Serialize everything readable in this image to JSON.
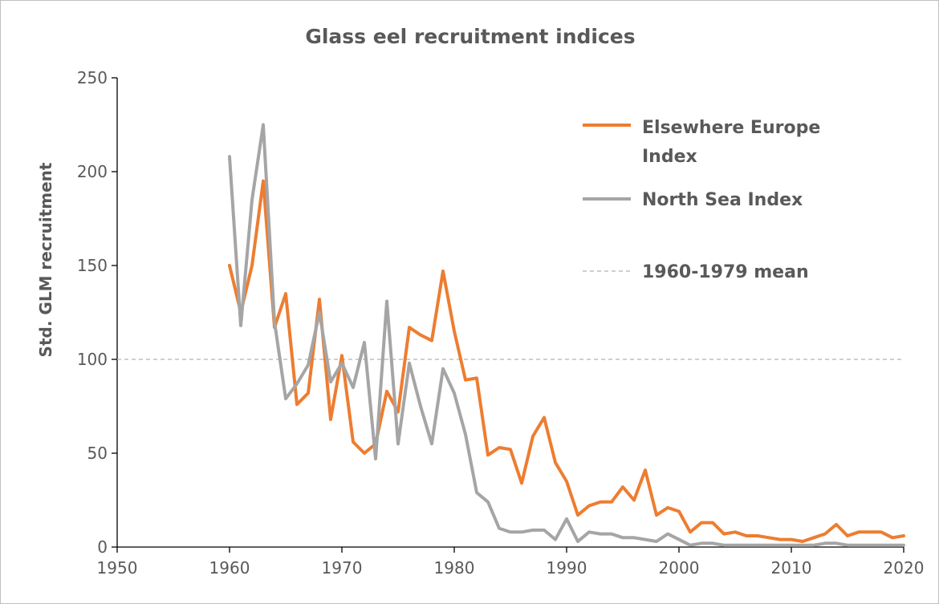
{
  "chart_data": {
    "type": "line",
    "title": "Glass eel recruitment indices",
    "xlabel": "",
    "ylabel": "Std. GLM recruitment",
    "xlim": [
      1950,
      2020
    ],
    "ylim": [
      0,
      250
    ],
    "x_ticks": [
      "1950",
      "1960",
      "1970",
      "1980",
      "1990",
      "2000",
      "2010",
      "2020"
    ],
    "y_ticks": [
      "0",
      "50",
      "100",
      "150",
      "200",
      "250"
    ],
    "grid": false,
    "legend_position": "top-right",
    "reference_line": {
      "name": "1960-1979 mean",
      "value": 100,
      "color": "#bfbfbf",
      "style": "dashed"
    },
    "series": [
      {
        "name_lines": [
          "Elsewhere Europe",
          "Index"
        ],
        "color": "#ed7d31",
        "x": [
          1960,
          1961,
          1962,
          1963,
          1964,
          1965,
          1966,
          1967,
          1968,
          1969,
          1970,
          1971,
          1972,
          1973,
          1974,
          1975,
          1976,
          1977,
          1978,
          1979,
          1980,
          1981,
          1982,
          1983,
          1984,
          1985,
          1986,
          1987,
          1988,
          1989,
          1990,
          1991,
          1992,
          1993,
          1994,
          1995,
          1996,
          1997,
          1998,
          1999,
          2000,
          2001,
          2002,
          2003,
          2004,
          2005,
          2006,
          2007,
          2008,
          2009,
          2010,
          2011,
          2012,
          2013,
          2014,
          2015,
          2016,
          2017,
          2018,
          2019,
          2020
        ],
        "values": [
          150,
          125,
          150,
          195,
          117,
          135,
          76,
          82,
          132,
          68,
          102,
          56,
          50,
          55,
          83,
          72,
          117,
          113,
          110,
          147,
          115,
          89,
          90,
          49,
          53,
          52,
          34,
          59,
          69,
          45,
          35,
          17,
          22,
          24,
          24,
          32,
          25,
          41,
          17,
          21,
          19,
          8,
          13,
          13,
          7,
          8,
          6,
          6,
          5,
          4,
          4,
          3,
          5,
          7,
          12,
          6,
          8,
          8,
          8,
          5,
          6
        ]
      },
      {
        "name": "North Sea Index",
        "color": "#a5a5a5",
        "x": [
          1960,
          1961,
          1962,
          1963,
          1964,
          1965,
          1966,
          1967,
          1968,
          1969,
          1970,
          1971,
          1972,
          1973,
          1974,
          1975,
          1976,
          1977,
          1978,
          1979,
          1980,
          1981,
          1982,
          1983,
          1984,
          1985,
          1986,
          1987,
          1988,
          1989,
          1990,
          1991,
          1992,
          1993,
          1994,
          1995,
          1996,
          1997,
          1998,
          1999,
          2000,
          2001,
          2002,
          2003,
          2004,
          2005,
          2006,
          2007,
          2008,
          2009,
          2010,
          2011,
          2012,
          2013,
          2014,
          2015,
          2016,
          2017,
          2018,
          2019,
          2020
        ],
        "values": [
          208,
          118,
          185,
          225,
          120,
          79,
          87,
          97,
          125,
          88,
          98,
          85,
          109,
          47,
          131,
          55,
          98,
          75,
          55,
          95,
          82,
          60,
          29,
          24,
          10,
          8,
          8,
          9,
          9,
          4,
          15,
          3,
          8,
          7,
          7,
          5,
          5,
          4,
          3,
          7,
          4,
          1,
          2,
          2,
          1,
          1,
          1,
          1,
          1,
          1,
          1,
          1,
          1,
          2,
          2,
          1,
          1,
          1,
          1,
          1,
          1
        ]
      }
    ]
  }
}
